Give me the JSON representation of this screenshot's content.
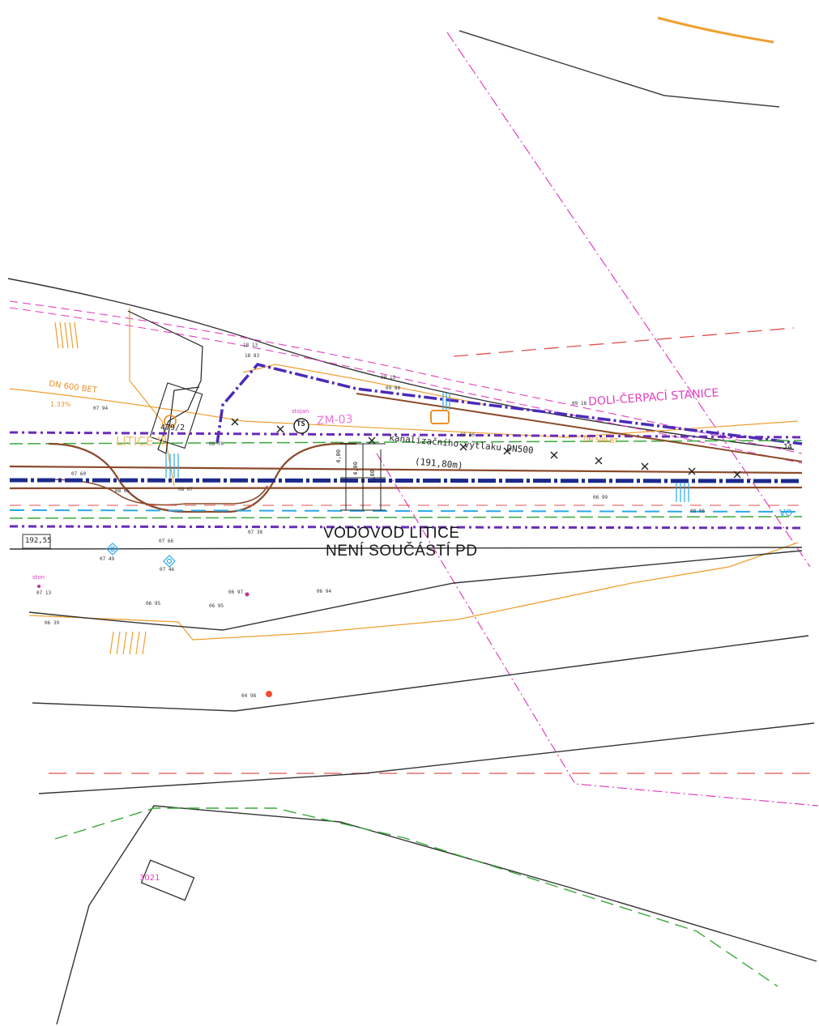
{
  "labels": {
    "note_line1": "VODOVOD LITICE",
    "note_line2": "NENÍ SOUČÁSTÍ PD",
    "station_label": "DOLI-ČERPACÍ STANICE",
    "pipe_spec": "DN 600 BET",
    "slope": "1.33%",
    "parcel_top": "479/2",
    "parcel_bottom": "3021",
    "utica_label": "LITICE II",
    "stojan": "stojan",
    "pipeline_desc": "kanalizačního výtlaku DN500",
    "pipeline_length": "(191,80m)",
    "pipe_right": "DN 500 BT",
    "ts_symbol": "TS",
    "ston": "ston",
    "elev_box": "192,55",
    "code_segment": "ZM-03",
    "dim_a": "4,00",
    "dim_b": "4,00",
    "dim_c": "1,80",
    "right_edge": "J4",
    "right_edge2": "VO"
  },
  "spot_heights": [
    {
      "id": "h1",
      "text": "07 94"
    },
    {
      "id": "h2",
      "text": "18 13"
    },
    {
      "id": "h3",
      "text": "18 83"
    },
    {
      "id": "h4",
      "text": "07 60"
    },
    {
      "id": "h5",
      "text": "08 05"
    },
    {
      "id": "h6",
      "text": "08 07"
    },
    {
      "id": "h7",
      "text": "09 88"
    },
    {
      "id": "h8",
      "text": "09 13"
    },
    {
      "id": "h9",
      "text": "07 66"
    },
    {
      "id": "h10",
      "text": "07 49"
    },
    {
      "id": "h11",
      "text": "07 46"
    },
    {
      "id": "h12",
      "text": "07 13"
    },
    {
      "id": "h13",
      "text": "06 95"
    },
    {
      "id": "h14",
      "text": "06 97"
    },
    {
      "id": "h15",
      "text": "06 95"
    },
    {
      "id": "h16",
      "text": "06 94"
    },
    {
      "id": "h17",
      "text": "06 39"
    },
    {
      "id": "h18",
      "text": "04 98"
    },
    {
      "id": "h19",
      "text": "07 38"
    },
    {
      "id": "h20",
      "text": "06 99"
    },
    {
      "id": "h21",
      "text": "09 18"
    },
    {
      "id": "h22",
      "text": "09 30"
    },
    {
      "id": "h23",
      "text": "08 70"
    },
    {
      "id": "h24",
      "text": "08 06"
    }
  ],
  "colors": {
    "brown": "#8b4a2b",
    "navy": "#1a2a8c",
    "purple": "#6a2bb8",
    "pink": "#e040c0",
    "green": "#3aa83a",
    "cyan": "#2aa8e8",
    "orange": "#f0a030",
    "red_dash": "#e05050",
    "grey": "#444444"
  }
}
